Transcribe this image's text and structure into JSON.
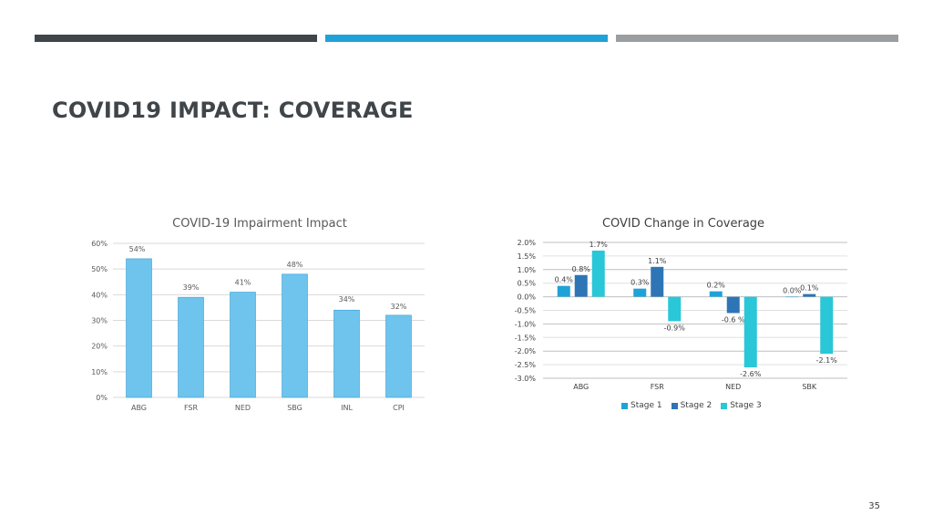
{
  "colors": {
    "bar_dark": "#3f4549",
    "bar_blue": "#1fa2d8",
    "bar_grey": "#9a9ea1",
    "stage1": "#1fa2d8",
    "stage2": "#2e75b6",
    "stage3": "#29c7d8",
    "impact_bar": "#6ec4ec"
  },
  "slide": {
    "title": "COVID19 IMPACT: COVERAGE",
    "page_number": "35"
  },
  "chart_data": [
    {
      "type": "bar",
      "title": "COVID-19 Impairment Impact",
      "categories": [
        "ABG",
        "FSR",
        "NED",
        "SBG",
        "INL",
        "CPI"
      ],
      "values": [
        54,
        39,
        41,
        48,
        34,
        32
      ],
      "data_labels": [
        "54%",
        "39%",
        "41%",
        "48%",
        "34%",
        "32%"
      ],
      "ylim": [
        0,
        60
      ],
      "yticks": [
        "0%",
        "10%",
        "20%",
        "30%",
        "40%",
        "50%",
        "60%"
      ],
      "grid": true,
      "xlabel": "",
      "ylabel": ""
    },
    {
      "type": "bar",
      "title": "COVID Change in Coverage",
      "categories": [
        "ABG",
        "FSR",
        "NED",
        "SBK"
      ],
      "series": [
        {
          "name": "Stage 1",
          "values": [
            0.4,
            0.3,
            0.2,
            0.0
          ]
        },
        {
          "name": "Stage 2",
          "values": [
            0.8,
            1.1,
            -0.6,
            0.1
          ]
        },
        {
          "name": "Stage 3",
          "values": [
            1.7,
            -0.9,
            -2.6,
            -2.1
          ]
        }
      ],
      "data_labels": [
        [
          "0.4%",
          "0.3%",
          "0.2%",
          "0.0%"
        ],
        [
          "0.8%",
          "1.1%",
          "-0.6 %",
          "0.1%"
        ],
        [
          "1.7%",
          "-0.9%",
          "-2.6%",
          "-2.1%"
        ]
      ],
      "ylim": [
        -3.0,
        2.0
      ],
      "yticks": [
        "-3.0%",
        "-2.5%",
        "-2.0%",
        "-1.5%",
        "-1.0%",
        "-0.5%",
        "0.0%",
        "0.5%",
        "1.0%",
        "1.5%",
        "2.0%"
      ],
      "legend_position": "bottom",
      "grid": true,
      "xlabel": "",
      "ylabel": ""
    }
  ]
}
